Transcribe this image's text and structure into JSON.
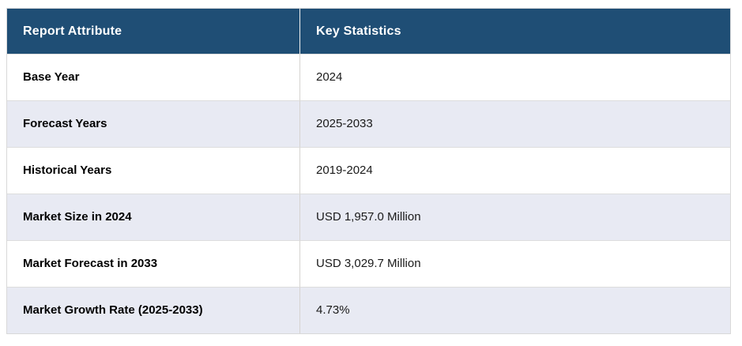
{
  "table": {
    "headers": {
      "attribute": "Report Attribute",
      "statistics": "Key Statistics"
    },
    "rows": [
      {
        "attribute": "Base Year",
        "value": "2024"
      },
      {
        "attribute": "Forecast Years",
        "value": "2025-2033"
      },
      {
        "attribute": "Historical Years",
        "value": "2019-2024"
      },
      {
        "attribute": "Market Size in 2024",
        "value": "USD 1,957.0 Million"
      },
      {
        "attribute": "Market Forecast in 2033",
        "value": "USD 3,029.7 Million"
      },
      {
        "attribute": "Market Growth Rate (2025-2033)",
        "value": "4.73%"
      }
    ],
    "colors": {
      "header_bg": "#1f4e75",
      "header_text": "#ffffff",
      "alt_row_bg": "#e8eaf3",
      "border": "#d9d9d9",
      "label_text": "#000000",
      "value_text": "#1a1a1a"
    }
  },
  "chart_data": {
    "type": "table",
    "columns": [
      "Report Attribute",
      "Key Statistics"
    ],
    "rows": [
      [
        "Base Year",
        "2024"
      ],
      [
        "Forecast Years",
        "2025-2033"
      ],
      [
        "Historical Years",
        "2019-2024"
      ],
      [
        "Market Size in 2024",
        "USD 1,957.0 Million"
      ],
      [
        "Market Forecast in 2033",
        "USD 3,029.7 Million"
      ],
      [
        "Market Growth Rate (2025-2033)",
        "4.73%"
      ]
    ]
  }
}
